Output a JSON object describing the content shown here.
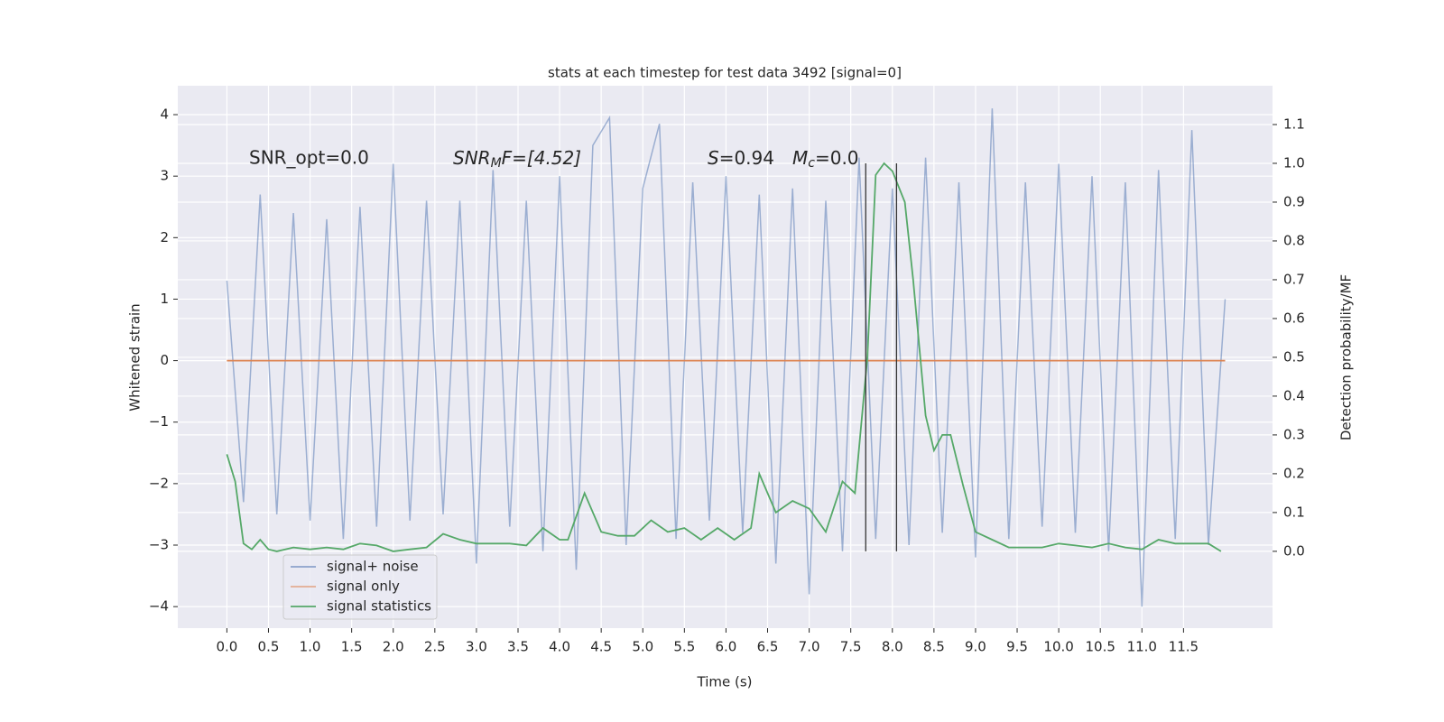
{
  "chart_data": {
    "type": "line",
    "title": "stats at each timestep for test data 3492 [signal=0]",
    "xlabel": "Time (s)",
    "ylabel": "Whitened strain",
    "y2label": "Detection probability/MF",
    "annotations": {
      "snr_opt": "SNR_opt=0.0",
      "snr_mf": {
        "base": "SNR",
        "sub": "M",
        "rest": "F=[4.52]"
      },
      "s": {
        "base": "S",
        "rest": "=0.94"
      },
      "mc": {
        "base": "M",
        "sub": "c",
        "rest": "=0.0"
      }
    },
    "xlim": [
      -0.59,
      12.57
    ],
    "xticks": [
      {
        "value": 0,
        "label": "0.0"
      },
      {
        "value": 0.5,
        "label": "0.5"
      },
      {
        "value": 1,
        "label": "1.0"
      },
      {
        "value": 1.5,
        "label": "1.5"
      },
      {
        "value": 2,
        "label": "2.0"
      },
      {
        "value": 2.5,
        "label": "2.5"
      },
      {
        "value": 3,
        "label": "3.0"
      },
      {
        "value": 3.5,
        "label": "3.5"
      },
      {
        "value": 4,
        "label": "4.0"
      },
      {
        "value": 4.5,
        "label": "4.5"
      },
      {
        "value": 5,
        "label": "5.0"
      },
      {
        "value": 5.5,
        "label": "5.5"
      },
      {
        "value": 6,
        "label": "6.0"
      },
      {
        "value": 6.5,
        "label": "6.5"
      },
      {
        "value": 7,
        "label": "7.0"
      },
      {
        "value": 7.5,
        "label": "7.5"
      },
      {
        "value": 8,
        "label": "8.0"
      },
      {
        "value": 8.5,
        "label": "8.5"
      },
      {
        "value": 9,
        "label": "9.0"
      },
      {
        "value": 9.5,
        "label": "9.5"
      },
      {
        "value": 10,
        "label": "10.0"
      },
      {
        "value": 10.5,
        "label": "10.5"
      },
      {
        "value": 11,
        "label": "11.0"
      },
      {
        "value": 11.5,
        "label": "11.5"
      }
    ],
    "ylim": [
      -4.35,
      4.47
    ],
    "yticks": [
      {
        "value": -4,
        "label": "−4"
      },
      {
        "value": -3,
        "label": "−3"
      },
      {
        "value": -2,
        "label": "−2"
      },
      {
        "value": -1,
        "label": "−1"
      },
      0,
      1,
      2,
      3,
      4
    ],
    "y2lim": [
      -0.198,
      1.2
    ],
    "y2ticks": [
      {
        "value": 0,
        "label": "0.0"
      },
      {
        "value": 0.1,
        "label": "0.1"
      },
      {
        "value": 0.2,
        "label": "0.2"
      },
      {
        "value": 0.3,
        "label": "0.3"
      },
      {
        "value": 0.4,
        "label": "0.4"
      },
      {
        "value": 0.5,
        "label": "0.5"
      },
      {
        "value": 0.6,
        "label": "0.6"
      },
      {
        "value": 0.7,
        "label": "0.7"
      },
      {
        "value": 0.8,
        "label": "0.8"
      },
      {
        "value": 0.9,
        "label": "0.9"
      },
      {
        "value": 1,
        "label": "1.0"
      },
      {
        "value": 1.1,
        "label": "1.1"
      }
    ],
    "grid": true,
    "legend": "lower left",
    "vlines": [
      7.68,
      8.05
    ],
    "series": [
      {
        "name": "signal+ noise",
        "color": "#4c72b0",
        "x": [
          0,
          0.2,
          0.4,
          0.6,
          0.8,
          1,
          1.2,
          1.4,
          1.6,
          1.8,
          2,
          2.2,
          2.4,
          2.6,
          2.8,
          3,
          3.2,
          3.4,
          3.6,
          3.8,
          4,
          4.2,
          4.4,
          4.6,
          4.8,
          5,
          5.2,
          5.4,
          5.6,
          5.8,
          6,
          6.2,
          6.4,
          6.6,
          6.8,
          7,
          7.2,
          7.4,
          7.6,
          7.8,
          8,
          8.2,
          8.4,
          8.6,
          8.8,
          9,
          9.2,
          9.4,
          9.6,
          9.8,
          10,
          10.2,
          10.4,
          10.6,
          10.8,
          11,
          11.2,
          11.4,
          11.6,
          11.8,
          12
        ],
        "values": [
          1.3,
          -2.3,
          2.7,
          -2.5,
          2.4,
          -2.6,
          2.3,
          -2.9,
          2.5,
          -2.7,
          3.2,
          -2.6,
          2.6,
          -2.5,
          2.6,
          -3.3,
          3.1,
          -2.7,
          2.6,
          -3.1,
          3.0,
          -3.4,
          3.5,
          3.95,
          -3.0,
          2.8,
          3.85,
          -2.9,
          2.9,
          -2.6,
          3.0,
          -2.8,
          2.7,
          -3.3,
          2.8,
          -3.8,
          2.6,
          -3.1,
          3.3,
          -2.9,
          2.8,
          -3.0,
          3.3,
          -2.8,
          2.9,
          -3.2,
          4.1,
          -2.9,
          2.9,
          -2.7,
          3.2,
          -2.8,
          3.0,
          -3.1,
          2.9,
          -4.0,
          3.1,
          -2.9,
          3.75,
          -3.0,
          1.0
        ]
      },
      {
        "name": "signal only",
        "color": "#dd8452",
        "x": [
          0,
          12
        ],
        "values": [
          0,
          0
        ]
      },
      {
        "name": "signal statistics",
        "color": "#55a868",
        "axis": "y2",
        "x": [
          0,
          0.1,
          0.2,
          0.3,
          0.4,
          0.5,
          0.6,
          0.8,
          1,
          1.2,
          1.4,
          1.6,
          1.8,
          2,
          2.2,
          2.4,
          2.6,
          2.8,
          3,
          3.2,
          3.4,
          3.6,
          3.8,
          4,
          4.1,
          4.3,
          4.5,
          4.7,
          4.9,
          5.1,
          5.3,
          5.5,
          5.7,
          5.9,
          6.1,
          6.3,
          6.4,
          6.6,
          6.8,
          7,
          7.2,
          7.4,
          7.55,
          7.7,
          7.8,
          7.9,
          8,
          8.15,
          8.25,
          8.4,
          8.5,
          8.6,
          8.7,
          8.85,
          9,
          9.2,
          9.4,
          9.6,
          9.8,
          10,
          10.2,
          10.4,
          10.6,
          10.8,
          11,
          11.2,
          11.4,
          11.6,
          11.8,
          11.95
        ],
        "values": [
          0.25,
          0.18,
          0.02,
          0.005,
          0.03,
          0.005,
          0,
          0.01,
          0.005,
          0.01,
          0.005,
          0.02,
          0.015,
          0,
          0.005,
          0.01,
          0.045,
          0.03,
          0.02,
          0.02,
          0.02,
          0.015,
          0.06,
          0.03,
          0.03,
          0.15,
          0.05,
          0.04,
          0.04,
          0.08,
          0.05,
          0.06,
          0.03,
          0.06,
          0.03,
          0.06,
          0.2,
          0.1,
          0.13,
          0.11,
          0.05,
          0.18,
          0.15,
          0.5,
          0.97,
          1.0,
          0.98,
          0.9,
          0.7,
          0.35,
          0.26,
          0.3,
          0.3,
          0.17,
          0.05,
          0.03,
          0.01,
          0.01,
          0.01,
          0.02,
          0.015,
          0.01,
          0.02,
          0.01,
          0.005,
          0.03,
          0.02,
          0.02,
          0.02,
          0
        ]
      }
    ]
  }
}
